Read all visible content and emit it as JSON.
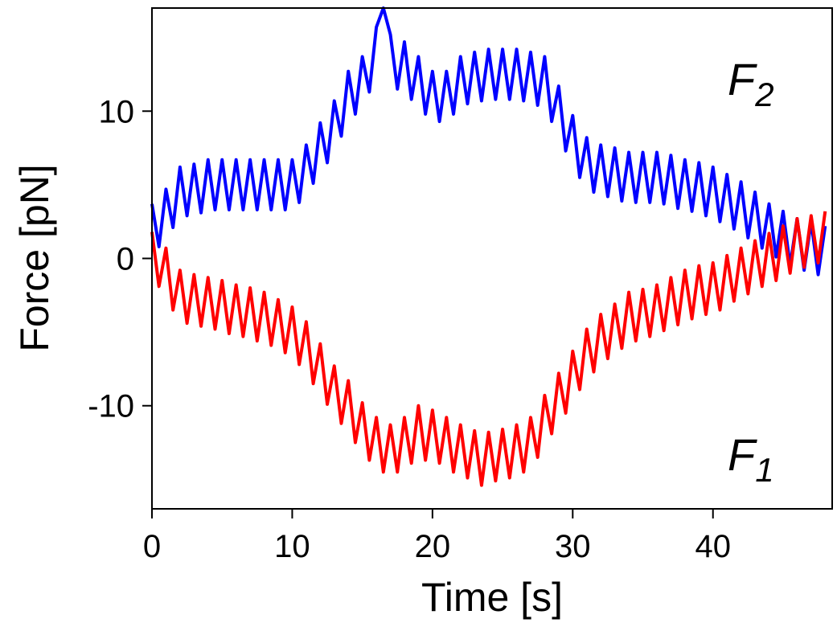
{
  "chart_data": {
    "type": "line",
    "x_label": "Time [s]",
    "y_label": "Force [pN]",
    "x": [
      0,
      0.5,
      1,
      1.5,
      2,
      2.5,
      3,
      3.5,
      4,
      4.5,
      5,
      5.5,
      6,
      6.5,
      7,
      7.5,
      8,
      8.5,
      9,
      9.5,
      10,
      10.5,
      11,
      11.5,
      12,
      12.5,
      13,
      13.5,
      14,
      14.5,
      15,
      15.5,
      16,
      16.5,
      17,
      17.5,
      18,
      18.5,
      19,
      19.5,
      20,
      20.5,
      21,
      21.5,
      22,
      22.5,
      23,
      23.5,
      24,
      24.5,
      25,
      25.5,
      26,
      26.5,
      27,
      27.5,
      28,
      28.5,
      29,
      29.5,
      30,
      30.5,
      31,
      31.5,
      32,
      32.5,
      33,
      33.5,
      34,
      34.5,
      35,
      35.5,
      36,
      36.5,
      37,
      37.5,
      38,
      38.5,
      39,
      39.5,
      40,
      40.5,
      41,
      41.5,
      42,
      42.5,
      43,
      43.5,
      44,
      44.5,
      45,
      45.5,
      46,
      46.5,
      47,
      47.5,
      48
    ],
    "series": [
      {
        "color": "#0000ff",
        "values": [
          3.7,
          0.8,
          4.7,
          2.1,
          6.2,
          2.9,
          6.4,
          3.1,
          6.7,
          3.3,
          6.7,
          3.3,
          6.7,
          3.3,
          6.7,
          3.3,
          6.7,
          3.3,
          6.7,
          3.3,
          6.7,
          3.8,
          7.7,
          5.1,
          9.2,
          6.5,
          10.7,
          8.3,
          12.7,
          9.8,
          13.7,
          11.3,
          15.7,
          17.0,
          15.2,
          11.5,
          14.7,
          10.8,
          13.7,
          9.8,
          12.7,
          9.3,
          12.7,
          9.8,
          13.7,
          10.5,
          14,
          10.7,
          14.2,
          10.8,
          14.2,
          10.8,
          14.2,
          10.7,
          14,
          10.4,
          13.7,
          9.3,
          11.7,
          7.3,
          9.7,
          5.5,
          8.2,
          4.5,
          7.7,
          4.2,
          7.5,
          3.9,
          7.2,
          3.8,
          7.2,
          3.8,
          7.2,
          3.7,
          7,
          3.4,
          6.7,
          3.2,
          6.5,
          2.9,
          6.2,
          2.5,
          5.7,
          2,
          5.2,
          1.4,
          4.5,
          0.7,
          3.7,
          0.1,
          3.2,
          -0.5,
          2.7,
          -0.8,
          2.5,
          -1.1,
          2.2
        ]
      },
      {
        "color": "#ff0000",
        "values": [
          1.8,
          -1.9,
          0.7,
          -3.5,
          -0.8,
          -4.4,
          -1.1,
          -4.6,
          -1.3,
          -4.8,
          -1.5,
          -5.1,
          -1.8,
          -5.3,
          -2,
          -5.6,
          -2.3,
          -5.9,
          -2.8,
          -6.4,
          -3.3,
          -7.2,
          -4.3,
          -8.5,
          -5.8,
          -9.9,
          -7.3,
          -11.2,
          -8.3,
          -12.5,
          -9.8,
          -13.7,
          -10.8,
          -14.5,
          -11.3,
          -14.5,
          -10.8,
          -13.9,
          -10,
          -13.7,
          -10.3,
          -13.9,
          -10.8,
          -14.5,
          -11.3,
          -14.9,
          -11.7,
          -15.4,
          -11.8,
          -15.1,
          -11.6,
          -14.9,
          -11.3,
          -14.5,
          -10.8,
          -13.5,
          -9.3,
          -11.9,
          -7.8,
          -10.5,
          -6.3,
          -8.9,
          -4.8,
          -7.7,
          -3.8,
          -6.8,
          -3.1,
          -6.1,
          -2.3,
          -5.6,
          -2.1,
          -5.3,
          -1.8,
          -4.9,
          -1.3,
          -4.5,
          -0.8,
          -4.1,
          -0.5,
          -3.8,
          -0.3,
          -3.5,
          0.2,
          -2.9,
          0.7,
          -2.4,
          1.2,
          -1.9,
          1.7,
          -1.5,
          2.2,
          -1,
          2.7,
          -0.6,
          2.9,
          -0.3,
          3.2
        ]
      }
    ],
    "annotations": [
      {
        "text": "F",
        "subscript": "2"
      },
      {
        "text": "F",
        "subscript": "1"
      }
    ],
    "xlim": [
      0,
      48.5
    ],
    "xticks": [
      0,
      10,
      20,
      30,
      40
    ],
    "ylim": [
      -17,
      17
    ],
    "yticks": [
      -10,
      0,
      10
    ]
  }
}
